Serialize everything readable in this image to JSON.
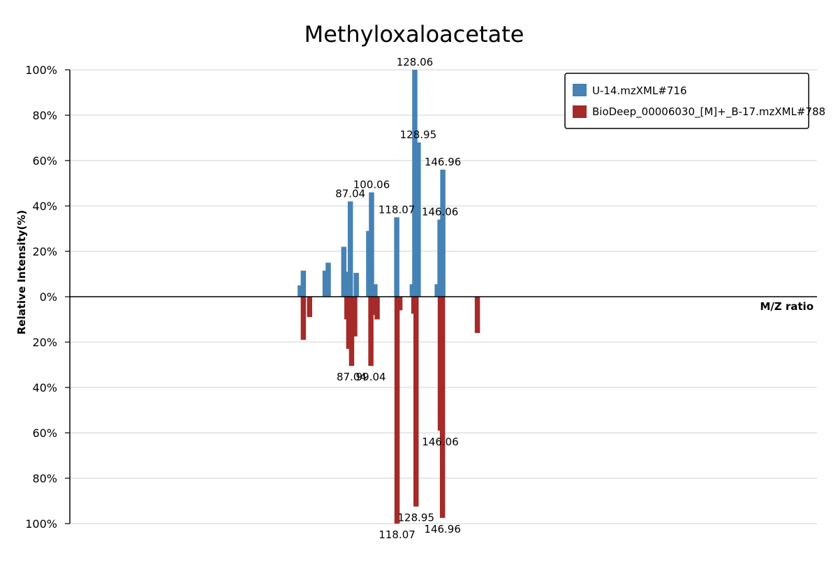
{
  "chart_data": {
    "type": "bar",
    "title": "Methyloxaloacetate",
    "ylabel": "Relative Intensity(%)",
    "xlabel": "M/Z ratio",
    "ylim": [
      -100,
      100
    ],
    "xlim": [
      0,
      240
    ],
    "y_ticks": [
      "100%",
      "80%",
      "60%",
      "40%",
      "20%",
      "0%",
      "20%",
      "40%",
      "60%",
      "80%",
      "100%"
    ],
    "grid": true,
    "legend_position": "top-right",
    "series": [
      {
        "name": "U-14.mzXML#716",
        "color": "#4682b4",
        "direction": "up",
        "peaks": [
          {
            "mz": 74.0,
            "intensity": 5
          },
          {
            "mz": 75.0,
            "intensity": 11.5
          },
          {
            "mz": 82.0,
            "intensity": 11.5
          },
          {
            "mz": 83.0,
            "intensity": 15
          },
          {
            "mz": 88.0,
            "intensity": 22
          },
          {
            "mz": 89.0,
            "intensity": 11
          },
          {
            "mz": 90.1,
            "intensity": 42,
            "label": "87.04"
          },
          {
            "mz": 92.0,
            "intensity": 10.5
          },
          {
            "mz": 96.0,
            "intensity": 29
          },
          {
            "mz": 96.9,
            "intensity": 46,
            "label": "100.06"
          },
          {
            "mz": 98.0,
            "intensity": 5.5
          },
          {
            "mz": 105.0,
            "intensity": 35,
            "label": "118.07"
          },
          {
            "mz": 110.0,
            "intensity": 5.5
          },
          {
            "mz": 110.8,
            "intensity": 100,
            "label": "128.06"
          },
          {
            "mz": 111.9,
            "intensity": 68,
            "label": "128.95"
          },
          {
            "mz": 118.0,
            "intensity": 5.5
          },
          {
            "mz": 118.9,
            "intensity": 34,
            "label": "146.06"
          },
          {
            "mz": 119.8,
            "intensity": 56,
            "label": "146.96"
          }
        ]
      },
      {
        "name": "BioDeep_00006030_[M]+_B-17.mzXML#788",
        "color": "#a52a2a",
        "direction": "down",
        "peaks": [
          {
            "mz": 75.0,
            "intensity": 19
          },
          {
            "mz": 77.0,
            "intensity": 9
          },
          {
            "mz": 89.0,
            "intensity": 10
          },
          {
            "mz": 89.6,
            "intensity": 23
          },
          {
            "mz": 90.5,
            "intensity": 30.5,
            "label": "87.04"
          },
          {
            "mz": 91.5,
            "intensity": 17.5
          },
          {
            "mz": 96.7,
            "intensity": 30.5,
            "label": "99.04"
          },
          {
            "mz": 97.8,
            "intensity": 8
          },
          {
            "mz": 98.7,
            "intensity": 10
          },
          {
            "mz": 105.1,
            "intensity": 100,
            "label": "118.07"
          },
          {
            "mz": 106.0,
            "intensity": 6
          },
          {
            "mz": 110.5,
            "intensity": 7.5
          },
          {
            "mz": 111.2,
            "intensity": 92.5,
            "label": "128.95"
          },
          {
            "mz": 119.0,
            "intensity": 59,
            "label": "146.06"
          },
          {
            "mz": 119.7,
            "intensity": 97.5,
            "label": "146.96"
          },
          {
            "mz": 130.9,
            "intensity": 16
          }
        ]
      }
    ]
  }
}
